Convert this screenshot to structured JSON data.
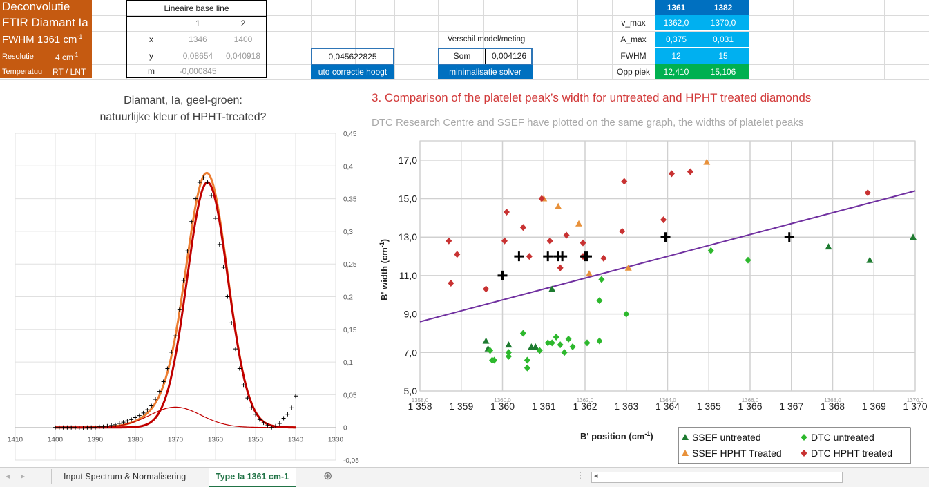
{
  "title_block": {
    "line1": "Deconvolutie",
    "line2": "FTIR Diamant Ia",
    "line3_prefix": "FWHM 1361 cm",
    "line3_sup": "-1",
    "resolutie_label": "Resolutie",
    "resolutie_value": "4 cm",
    "resolutie_sup": "-1",
    "temp_label": "Temperatuu",
    "temp_value": "RT / LNT"
  },
  "baseline": {
    "header": "Lineaire base line",
    "col1": "1",
    "col2": "2",
    "rows": [
      {
        "label": "x",
        "v1": "1346",
        "v2": "1400"
      },
      {
        "label": "y",
        "v1": "0,08654",
        "v2": "0,040918"
      },
      {
        "label": "m",
        "v1": "-0,000845",
        "v2": ""
      }
    ]
  },
  "auto_correct": {
    "value": "0,045622825",
    "button": "uto correctie hoogt"
  },
  "model": {
    "header": "Verschil model/meting",
    "som_label": "Som",
    "som_value": "0,004126",
    "button": "minimalisatie solver"
  },
  "peaks": {
    "headers": [
      "1361",
      "1382"
    ],
    "rows": [
      {
        "label": "v_max",
        "values": [
          "1362,0",
          "1370,0"
        ]
      },
      {
        "label": "A_max",
        "values": [
          "0,375",
          "0,031"
        ]
      },
      {
        "label": "FWHM",
        "values": [
          "12",
          "15"
        ]
      },
      {
        "label": "Opp piek",
        "values": [
          "12,410",
          "15,106"
        ]
      }
    ]
  },
  "colors": {
    "orange_block": "#c55a11",
    "header_blue": "#0070c0",
    "value_blue": "#00b0f0",
    "area_green": "#00b050",
    "fit_orange": "#ed7d31",
    "fit_red": "#c00000",
    "trend": "#7030a0"
  },
  "chart_data": [
    {
      "type": "line",
      "title": "Diamant, Ia, geel-groen: natuurlijke kleur of HPHT-treated?",
      "title_line1": "Diamant, Ia, geel-groen:",
      "title_line2": "natuurlijke kleur of HPHT-treated?",
      "xlim": [
        1410,
        1330
      ],
      "ylim": [
        -0.05,
        0.45
      ],
      "x_ticks": [
        "1410",
        "1400",
        "1390",
        "1380",
        "1370",
        "1360",
        "1350",
        "1340",
        "1330"
      ],
      "y_ticks": [
        "0,45",
        "0,4",
        "0,35",
        "0,3",
        "0,25",
        "0,2",
        "0,15",
        "0,1",
        "0,05",
        "0",
        "-0,05"
      ],
      "grid": true,
      "series": [
        {
          "role": "measured",
          "marker": "+",
          "x": [
            1400,
            1399,
            1398,
            1397,
            1396,
            1395,
            1394,
            1393,
            1392,
            1391,
            1390,
            1389,
            1388,
            1387,
            1386,
            1385,
            1384,
            1383,
            1382,
            1381,
            1380,
            1379,
            1378,
            1377,
            1376,
            1375,
            1374,
            1373,
            1372,
            1371,
            1370,
            1369,
            1368,
            1367,
            1366,
            1365,
            1364,
            1363,
            1362,
            1361,
            1360,
            1359,
            1358,
            1357,
            1356,
            1355,
            1354,
            1353,
            1352,
            1351,
            1350,
            1349,
            1348,
            1347,
            1346,
            1345,
            1344,
            1343,
            1342,
            1341,
            1340
          ],
          "y": [
            0.0,
            0.0,
            0.0,
            0.0,
            0.0,
            0.0,
            -0.001,
            -0.001,
            0.0,
            0.0,
            0.0,
            0.001,
            0.001,
            0.002,
            0.003,
            0.004,
            0.006,
            0.008,
            0.01,
            0.012,
            0.015,
            0.018,
            0.022,
            0.027,
            0.033,
            0.043,
            0.055,
            0.07,
            0.09,
            0.115,
            0.14,
            0.18,
            0.225,
            0.27,
            0.315,
            0.35,
            0.375,
            0.382,
            0.375,
            0.355,
            0.32,
            0.28,
            0.245,
            0.2,
            0.16,
            0.12,
            0.09,
            0.065,
            0.045,
            0.03,
            0.02,
            0.012,
            0.007,
            0.003,
            0.0,
            0.002,
            0.006,
            0.014,
            0.02,
            0.03,
            0.048
          ]
        },
        {
          "role": "fit-sum",
          "color": "#ed7d31",
          "peaks": [
            {
              "center": 1362,
              "amp": 0.375,
              "fwhm": 12
            },
            {
              "center": 1370,
              "amp": 0.031,
              "fwhm": 15
            }
          ]
        },
        {
          "role": "fit-main",
          "color": "#c00000",
          "peaks": [
            {
              "center": 1362,
              "amp": 0.375,
              "fwhm": 12
            }
          ]
        },
        {
          "role": "fit-minor",
          "color": "#c00000",
          "peaks": [
            {
              "center": 1370,
              "amp": 0.031,
              "fwhm": 15
            }
          ]
        }
      ]
    },
    {
      "type": "scatter",
      "heading": "3. Comparison of the platelet peak’s width for untreated and HPHT treated diamonds",
      "subheading": "DTC Research Centre and SSEF have plotted on the same graph, the widths of platelet peaks",
      "xlabel": "B' position (cm",
      "xlabel_sup": "-1",
      "xlabel_end": ")",
      "ylabel": "B' width (cm",
      "ylabel_sup": "-1",
      "ylabel_end": ")",
      "xlim": [
        1358,
        1370
      ],
      "ylim": [
        5,
        18
      ],
      "x_ticks": [
        "1 358",
        "1 359",
        "1 360",
        "1 361",
        "1 362",
        "1 363",
        "1 364",
        "1 365",
        "1 366",
        "1 367",
        "1 368",
        "1 369",
        "1 370"
      ],
      "x_ticks_small": [
        "1358,0",
        "",
        "1360,0",
        "",
        "1362,0",
        "",
        "1364,0",
        "",
        "1366,0",
        "",
        "1368,0",
        "",
        "1370,0"
      ],
      "y_ticks": [
        "17,0",
        "15,0",
        "13,0",
        "11,0",
        "9,0",
        "7,0",
        "5,0"
      ],
      "y_ticks_values": [
        17,
        15,
        13,
        11,
        9,
        7,
        5
      ],
      "grid": true,
      "legend_position": "bottom-right",
      "series": [
        {
          "name": "SSEF untreated",
          "marker": "triangle",
          "color": "#1e7b30",
          "x": [
            1359.6,
            1359.65,
            1360.15,
            1360.7,
            1360.8,
            1361.2,
            1367.9,
            1368.9,
            1369.95
          ],
          "y": [
            7.6,
            7.2,
            7.4,
            7.3,
            7.3,
            10.3,
            12.5,
            11.8,
            13.0
          ]
        },
        {
          "name": "DTC untreated",
          "marker": "diamond",
          "color": "#2db82d",
          "x": [
            1359.7,
            1359.8,
            1360.15,
            1360.15,
            1360.5,
            1360.6,
            1360.6,
            1360.9,
            1361.1,
            1361.2,
            1361.3,
            1361.4,
            1361.5,
            1361.7,
            1362.05,
            1362.35,
            1362.35,
            1362.4,
            1363.0,
            1365.05,
            1365.95
          ],
          "y": [
            7.1,
            6.6,
            7.0,
            6.8,
            8.0,
            6.2,
            6.6,
            7.1,
            7.5,
            7.5,
            7.8,
            7.4,
            7.0,
            7.3,
            7.5,
            7.6,
            9.7,
            10.8,
            9.0,
            12.3,
            11.8
          ],
          "x2": [
            1359.75,
            1361.6
          ],
          "y2": [
            6.6,
            7.7
          ]
        },
        {
          "name": "SSEF HPHT Treated",
          "marker": "triangle",
          "color": "#e8913a",
          "x": [
            1361.0,
            1361.35,
            1361.85,
            1362.1,
            1363.05,
            1364.95
          ],
          "y": [
            15.0,
            14.6,
            13.7,
            11.1,
            11.4,
            16.9
          ]
        },
        {
          "name": "DTC HPHT treated",
          "marker": "diamond",
          "color": "#c83232",
          "x": [
            1358.7,
            1358.75,
            1358.9,
            1359.6,
            1360.05,
            1360.1,
            1360.5,
            1360.65,
            1360.95,
            1361.15,
            1361.4,
            1361.55,
            1361.95,
            1361.95,
            1362.45,
            1362.9,
            1362.95,
            1363.9,
            1364.1,
            1364.55,
            1368.85
          ],
          "y": [
            12.8,
            10.6,
            12.1,
            10.3,
            12.8,
            14.3,
            13.5,
            12.0,
            15.0,
            12.8,
            11.4,
            13.1,
            12.7,
            12.0,
            11.9,
            13.3,
            15.9,
            13.9,
            16.3,
            16.4,
            15.3
          ]
        },
        {
          "role": "markers-plus",
          "color": "#000000",
          "x": [
            1360.0,
            1360.4,
            1361.1,
            1361.35,
            1361.45,
            1362.0,
            1362.05,
            1363.95,
            1366.95
          ],
          "y": [
            11.0,
            12.0,
            12.0,
            12.0,
            12.0,
            12.0,
            12.0,
            13.0,
            13.0
          ]
        }
      ],
      "trendline": {
        "color": "#7030a0",
        "x": [
          1358,
          1370
        ],
        "y": [
          8.6,
          15.4
        ]
      }
    }
  ],
  "tabs": {
    "sheet1": "Input Spectrum & Normalisering",
    "sheet2": "Type Ia 1361 cm-1",
    "add": "⊕"
  },
  "nav": {
    "prev": "◂",
    "next": "▸"
  }
}
